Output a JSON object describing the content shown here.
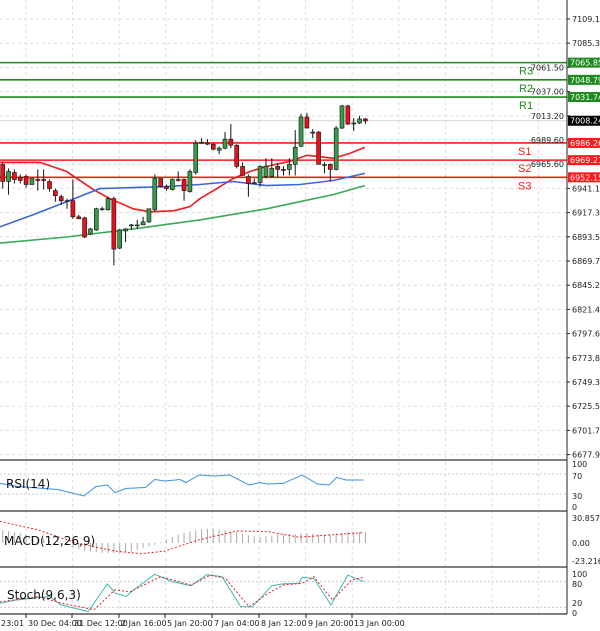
{
  "chart_data": {
    "type": "candlestick",
    "price_axis": {
      "range": [
        6677.9,
        7109.1
      ],
      "ticks": [
        "7109.10",
        "7085.30",
        "7061.50",
        "7037.00",
        "7013.20",
        "6989.60",
        "6965.60",
        "6941.10",
        "6917.30",
        "6893.50",
        "6869.70",
        "6845.20",
        "6821.40",
        "6797.60",
        "6773.80",
        "6749.30",
        "6725.50",
        "6701.70",
        "6677.90"
      ]
    },
    "time_axis": {
      "ticks": [
        "23:01",
        "30 Dec 04:00",
        "31 Dec 12:00",
        "2 Jan 16:00",
        "5 Jan 20:00",
        "7 Jan 04:00",
        "8 Jan 12:00",
        "9 Jan 20:00",
        "13 Jan 00:00"
      ]
    },
    "grid": true,
    "colors": {
      "bull": "#3a9a4a",
      "bear": "#e8101a",
      "resistance": "#1f8a1f",
      "support": "#ff1a1a",
      "ma_fast": "#ee1c1c",
      "ma_mid": "#3a66dd",
      "ma_slow": "#3aaa5a",
      "current": "#000000"
    },
    "candles_ohlc": [
      [
        6965,
        6968,
        6941,
        6948
      ],
      [
        6948,
        6961,
        6935,
        6958
      ],
      [
        6957,
        6960,
        6946,
        6950
      ],
      [
        6952,
        6955,
        6946,
        6949
      ],
      [
        6953,
        6955,
        6942,
        6945
      ],
      [
        6945,
        6951,
        6945,
        6951
      ],
      [
        6950,
        6960,
        6939,
        6949
      ],
      [
        6950,
        6960,
        6940,
        6949
      ],
      [
        6948,
        6950,
        6938,
        6941
      ],
      [
        6939,
        6941,
        6928,
        6934
      ],
      [
        6933,
        6935,
        6925,
        6929
      ],
      [
        6929,
        6931,
        6921,
        6929
      ],
      [
        6929,
        6950,
        6911,
        6913
      ],
      [
        6913,
        6915,
        6911,
        6911
      ],
      [
        6912,
        6913,
        6892,
        6893
      ],
      [
        6896,
        6902,
        6895,
        6901
      ],
      [
        6900,
        6922,
        6899,
        6921
      ],
      [
        6920,
        6923,
        6919,
        6921
      ],
      [
        6920,
        6933,
        6919,
        6931
      ],
      [
        6931,
        6933,
        6865,
        6881
      ],
      [
        6882,
        6901,
        6881,
        6900
      ],
      [
        6899,
        6902,
        6888,
        6901
      ],
      [
        6904,
        6906,
        6900,
        6905
      ],
      [
        6904,
        6910,
        6901,
        6905
      ],
      [
        6905,
        6913,
        6905,
        6908
      ],
      [
        6908,
        6921,
        6907,
        6921
      ],
      [
        6920,
        6955,
        6918,
        6951
      ],
      [
        6951,
        6951,
        6942,
        6943
      ],
      [
        6943,
        6945,
        6939,
        6941
      ],
      [
        6940,
        6951,
        6939,
        6950
      ],
      [
        6950,
        6958,
        6948,
        6950
      ],
      [
        6950,
        6951,
        6929,
        6939
      ],
      [
        6938,
        6960,
        6937,
        6958
      ],
      [
        6957,
        6989,
        6955,
        6986
      ],
      [
        6986,
        6991,
        6985,
        6987
      ],
      [
        6986,
        6990,
        6984,
        6986
      ],
      [
        6985,
        6986,
        6979,
        6980
      ],
      [
        6979,
        6983,
        6975,
        6981
      ],
      [
        6981,
        6997,
        6980,
        6990
      ],
      [
        6990,
        7005,
        6981,
        6984
      ],
      [
        6984,
        6985,
        6961,
        6963
      ],
      [
        6963,
        6967,
        6954,
        6954
      ],
      [
        6953,
        6955,
        6933,
        6946
      ],
      [
        6947,
        6951,
        6946,
        6947
      ],
      [
        6947,
        6964,
        6943,
        6963
      ],
      [
        6953,
        6971,
        6951,
        6963
      ],
      [
        6953,
        6971,
        6952,
        6961
      ],
      [
        6963,
        6966,
        6952,
        6960
      ],
      [
        6960,
        6963,
        6954,
        6959
      ],
      [
        6960,
        6971,
        6954,
        6965
      ],
      [
        6965,
        6999,
        6954,
        6982
      ],
      [
        6983,
        7015,
        6982,
        7012
      ],
      [
        7012,
        7016,
        7001,
        7001
      ],
      [
        6997,
        7000,
        6991,
        6996
      ],
      [
        6997,
        6998,
        6965,
        6965
      ],
      [
        6965,
        6967,
        6956,
        6965
      ],
      [
        6965,
        6966,
        6948,
        6960
      ],
      [
        6960,
        7003,
        6959,
        7001
      ],
      [
        7001,
        7024,
        7000,
        7023
      ],
      [
        7023,
        7024,
        7004,
        7005
      ],
      [
        7005,
        7011,
        6998,
        7006
      ],
      [
        7006,
        7013,
        7005,
        7010
      ],
      [
        7010,
        7011,
        7005,
        7008
      ]
    ],
    "moving_averages": [
      {
        "color": "#ee1c1c",
        "points": [
          [
            0.5,
            6967
          ],
          [
            4,
            6967
          ],
          [
            7.4,
            6967
          ],
          [
            11.9,
            6958
          ],
          [
            16.5,
            6940
          ],
          [
            19.3,
            6931
          ],
          [
            23.3,
            6921
          ],
          [
            26.2,
            6918
          ],
          [
            30.2,
            6919
          ],
          [
            33,
            6923
          ],
          [
            34.7,
            6931
          ],
          [
            37.6,
            6941
          ],
          [
            40.4,
            6951
          ],
          [
            43.3,
            6958
          ],
          [
            46.1,
            6963
          ],
          [
            50.1,
            6968
          ],
          [
            53,
            6974
          ],
          [
            54.7,
            6973
          ],
          [
            57.5,
            6971
          ],
          [
            60.4,
            6976
          ],
          [
            62.9,
            6982
          ]
        ]
      },
      {
        "color": "#3a66dd",
        "points": [
          [
            0.5,
            6903
          ],
          [
            6.2,
            6915
          ],
          [
            11.9,
            6928
          ],
          [
            17.6,
            6941
          ],
          [
            23.3,
            6942
          ],
          [
            29,
            6943
          ],
          [
            34.7,
            6945
          ],
          [
            40.4,
            6948
          ],
          [
            46.1,
            6944
          ],
          [
            51.8,
            6945
          ],
          [
            57.5,
            6949
          ],
          [
            62.9,
            6956
          ]
        ]
      },
      {
        "color": "#3aaa5a",
        "points": [
          [
            0.5,
            6887
          ],
          [
            11.9,
            6893
          ],
          [
            23.3,
            6901
          ],
          [
            34.7,
            6910
          ],
          [
            46.1,
            6921
          ],
          [
            51.8,
            6928
          ],
          [
            57.5,
            6935
          ],
          [
            62.9,
            6944
          ]
        ]
      }
    ],
    "pivot_levels": [
      {
        "name": "R3",
        "value": 7065.85,
        "label": "7065.85",
        "kind": "resistance"
      },
      {
        "name": "R2",
        "value": 7048.79,
        "label": "7048.79",
        "kind": "resistance"
      },
      {
        "name": "R1",
        "value": 7031.74,
        "label": "7031.74",
        "kind": "resistance"
      },
      {
        "name": "S1",
        "value": 6986.26,
        "label": "6986.26",
        "kind": "support"
      },
      {
        "name": "S2",
        "value": 6969.21,
        "label": "6969.21",
        "kind": "support"
      },
      {
        "name": "S3",
        "value": 6952.15,
        "label": "6952.15",
        "kind": "support"
      }
    ],
    "current_price": {
      "value": 7008.24,
      "label": "7008.24"
    },
    "rsi": {
      "label": "RSI(14)",
      "ticks": [
        "100",
        "70",
        "30",
        "0"
      ],
      "color": "#3b8fe8",
      "points": [
        [
          0.5,
          51.3
        ],
        [
          3.8,
          44.7
        ],
        [
          10.4,
          39
        ],
        [
          14.9,
          26
        ],
        [
          16.9,
          44.7
        ],
        [
          18.9,
          48
        ],
        [
          20.2,
          32.7
        ],
        [
          22.1,
          41.3
        ],
        [
          25.4,
          43
        ],
        [
          27,
          59
        ],
        [
          28.7,
          56
        ],
        [
          31.3,
          59
        ],
        [
          32.3,
          53
        ],
        [
          34.6,
          68
        ],
        [
          37.2,
          66
        ],
        [
          39.8,
          68
        ],
        [
          43.1,
          48
        ],
        [
          45,
          52.7
        ],
        [
          46.3,
          50
        ],
        [
          48.9,
          51.3
        ],
        [
          52.2,
          68
        ],
        [
          54.8,
          50
        ],
        [
          56.8,
          48
        ],
        [
          58.1,
          63.3
        ],
        [
          59.7,
          58
        ],
        [
          62.7,
          58
        ]
      ]
    },
    "macd": {
      "label": "MACD(12,26,9)",
      "ticks": [
        "30.857",
        "0.00",
        "-23.216"
      ],
      "range": [
        -23.216,
        30.857
      ],
      "histogram": [
        15,
        14,
        13,
        12,
        10,
        8,
        6,
        5,
        3,
        1,
        -1,
        -3,
        -5,
        -7,
        -9,
        -10,
        -11,
        -12,
        -12,
        -12,
        -12,
        -11,
        -10,
        -8,
        -6,
        -4,
        -2,
        1,
        4,
        7,
        10,
        12,
        14,
        15,
        16,
        17,
        17,
        16,
        15,
        14,
        13,
        11,
        9,
        8,
        7,
        8,
        9,
        10,
        10,
        11,
        11,
        12,
        12,
        11,
        10,
        10,
        10,
        11,
        12,
        13,
        13,
        13,
        13
      ],
      "signal": [
        [
          0.5,
          25.8
        ],
        [
          7.1,
          15.4
        ],
        [
          13.6,
          0
        ],
        [
          20.2,
          -9.6
        ],
        [
          24.7,
          -12.7
        ],
        [
          28.7,
          -9.6
        ],
        [
          34.6,
          3.9
        ],
        [
          41.1,
          14.3
        ],
        [
          46.3,
          13.5
        ],
        [
          51.6,
          6.9
        ],
        [
          59.4,
          10.8
        ],
        [
          62.7,
          12.3
        ]
      ]
    },
    "stoch": {
      "label": "Stoch(9,6,3)",
      "ticks": [
        "100",
        "80",
        "20",
        "0"
      ],
      "main": [
        [
          0.5,
          29.5
        ],
        [
          3.2,
          36.9
        ],
        [
          9,
          45.3
        ],
        [
          11,
          25.7
        ],
        [
          15.6,
          10.4
        ],
        [
          18.9,
          74.6
        ],
        [
          20.2,
          53.6
        ],
        [
          22.1,
          45.3
        ],
        [
          23.4,
          60.6
        ],
        [
          27,
          97
        ],
        [
          30,
          80.1
        ],
        [
          33.2,
          70.4
        ],
        [
          35.9,
          96
        ],
        [
          38.5,
          91.3
        ],
        [
          41.7,
          21.5
        ],
        [
          43.7,
          21.5
        ],
        [
          47,
          70.4
        ],
        [
          48.9,
          74.6
        ],
        [
          51.6,
          76
        ],
        [
          52.2,
          89.9
        ],
        [
          54.2,
          87.1
        ],
        [
          57.1,
          25.7
        ],
        [
          60,
          95
        ],
        [
          62.7,
          80.1
        ]
      ],
      "signal": [
        [
          0.5,
          32.7
        ],
        [
          7.1,
          45.3
        ],
        [
          11,
          29.9
        ],
        [
          16.6,
          14.6
        ],
        [
          20.2,
          60.6
        ],
        [
          22.8,
          56.4
        ],
        [
          28,
          91.3
        ],
        [
          33.2,
          71.8
        ],
        [
          36.5,
          95
        ],
        [
          39.1,
          87.1
        ],
        [
          43.1,
          21.5
        ],
        [
          46.3,
          52.2
        ],
        [
          48.9,
          71.8
        ],
        [
          52.2,
          76
        ],
        [
          54.2,
          91.3
        ],
        [
          57.4,
          36.9
        ],
        [
          60.7,
          84.3
        ],
        [
          62.7,
          89.9
        ]
      ]
    }
  }
}
